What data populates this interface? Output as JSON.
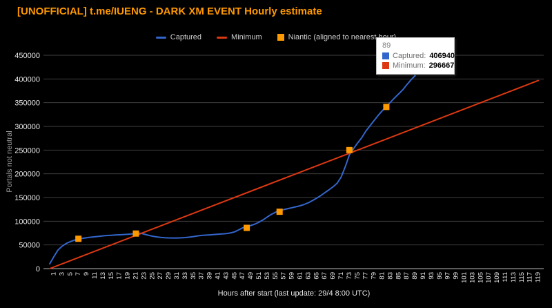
{
  "title": "[UNOFFICIAL] t.me/IUENG - DARK XM EVENT Hourly estimate",
  "colors": {
    "captured": "#3366cc",
    "minimum": "#dc3912",
    "niantic": "#ff9900",
    "grid": "#3f3f3f",
    "baseline": "#b9b9b9",
    "axis_text": "#e8e8e8",
    "axis_title": "#9e9e9e",
    "title": "#ff9900",
    "background": "#000000"
  },
  "legend": {
    "items": [
      {
        "label": "Captured",
        "color": "#3366cc",
        "glyph": "line"
      },
      {
        "label": "Minimum",
        "color": "#dc3912",
        "glyph": "line"
      },
      {
        "label": "Niantic (aligned to nearest hour)",
        "color": "#ff9900",
        "glyph": "square"
      }
    ]
  },
  "tooltip": {
    "x_label": "89",
    "rows": [
      {
        "label": "Captured:",
        "value": "406940",
        "color": "#3366cc"
      },
      {
        "label": "Minimum:",
        "value": "296667",
        "color": "#dc3912"
      }
    ]
  },
  "chart_data": {
    "type": "line",
    "title": "[UNOFFICIAL] t.me/IUENG - DARK XM EVENT Hourly estimate",
    "xlabel": "Hours after start (last update: 29/4  8:00 UTC)",
    "ylabel": "Portals not neutral",
    "xlim": [
      0,
      120
    ],
    "ylim": [
      0,
      450000
    ],
    "grid": true,
    "legend_position": "top",
    "x_ticks": [
      1,
      3,
      5,
      7,
      9,
      11,
      13,
      15,
      17,
      19,
      21,
      23,
      25,
      27,
      29,
      31,
      33,
      35,
      37,
      39,
      41,
      43,
      45,
      47,
      49,
      51,
      53,
      55,
      57,
      59,
      61,
      63,
      65,
      67,
      69,
      71,
      73,
      75,
      77,
      79,
      81,
      83,
      85,
      87,
      89,
      91,
      93,
      95,
      97,
      99,
      101,
      103,
      105,
      107,
      109,
      111,
      113,
      115,
      117,
      119
    ],
    "y_ticks": [
      0,
      50000,
      100000,
      150000,
      200000,
      250000,
      300000,
      350000,
      400000,
      450000
    ],
    "hovered_point": {
      "x": 89,
      "captured": 406940,
      "minimum": 296667
    },
    "series": [
      {
        "name": "Captured",
        "type": "line",
        "color": "#3366cc",
        "points": [
          [
            0,
            10000
          ],
          [
            1,
            25000
          ],
          [
            2,
            39000
          ],
          [
            3,
            47000
          ],
          [
            4,
            53000
          ],
          [
            5,
            57000
          ],
          [
            6,
            60000
          ],
          [
            7,
            62500
          ],
          [
            8,
            64000
          ],
          [
            9,
            65200
          ],
          [
            10,
            66200
          ],
          [
            11,
            67200
          ],
          [
            12,
            68200
          ],
          [
            13,
            69200
          ],
          [
            14,
            69900
          ],
          [
            15,
            70400
          ],
          [
            16,
            70900
          ],
          [
            17,
            71400
          ],
          [
            18,
            71900
          ],
          [
            19,
            72400
          ],
          [
            20,
            73200
          ],
          [
            21,
            74000
          ],
          [
            22,
            74800
          ],
          [
            23,
            72800
          ],
          [
            24,
            70500
          ],
          [
            25,
            68500
          ],
          [
            26,
            67000
          ],
          [
            27,
            66000
          ],
          [
            28,
            65200
          ],
          [
            29,
            64800
          ],
          [
            30,
            64600
          ],
          [
            31,
            64700
          ],
          [
            32,
            65000
          ],
          [
            33,
            65600
          ],
          [
            34,
            66400
          ],
          [
            35,
            67600
          ],
          [
            36,
            69000
          ],
          [
            37,
            70000
          ],
          [
            38,
            70600
          ],
          [
            39,
            71200
          ],
          [
            40,
            72000
          ],
          [
            41,
            72700
          ],
          [
            42,
            73300
          ],
          [
            43,
            74000
          ],
          [
            44,
            75200
          ],
          [
            45,
            77500
          ],
          [
            46,
            81500
          ],
          [
            47,
            86000
          ],
          [
            48,
            88500
          ],
          [
            49,
            91000
          ],
          [
            50,
            94000
          ],
          [
            51,
            98000
          ],
          [
            52,
            103000
          ],
          [
            53,
            109000
          ],
          [
            54,
            114500
          ],
          [
            55,
            119000
          ],
          [
            56,
            122000
          ],
          [
            57,
            124500
          ],
          [
            58,
            126500
          ],
          [
            59,
            128500
          ],
          [
            60,
            130500
          ],
          [
            61,
            132500
          ],
          [
            62,
            135500
          ],
          [
            63,
            139000
          ],
          [
            64,
            143500
          ],
          [
            65,
            148500
          ],
          [
            66,
            154000
          ],
          [
            67,
            160000
          ],
          [
            68,
            166000
          ],
          [
            69,
            172500
          ],
          [
            70,
            180000
          ],
          [
            71,
            193000
          ],
          [
            72,
            215000
          ],
          [
            73,
            240000
          ],
          [
            74,
            253000
          ],
          [
            75,
            265000
          ],
          [
            76,
            276000
          ],
          [
            77,
            290000
          ],
          [
            78,
            301000
          ],
          [
            79,
            312000
          ],
          [
            80,
            323000
          ],
          [
            81,
            333000
          ],
          [
            82,
            341500
          ],
          [
            83,
            351000
          ],
          [
            84,
            360000
          ],
          [
            85,
            368500
          ],
          [
            86,
            377000
          ],
          [
            87,
            388000
          ],
          [
            88,
            398000
          ],
          [
            89,
            406940
          ]
        ]
      },
      {
        "name": "Minimum",
        "type": "line",
        "color": "#dc3912",
        "points": [
          [
            0,
            0
          ],
          [
            119,
            396667
          ]
        ]
      },
      {
        "name": "Niantic (aligned to nearest hour)",
        "type": "points",
        "marker": "square",
        "color": "#ff9900",
        "points": [
          [
            7,
            63000
          ],
          [
            21,
            74000
          ],
          [
            48,
            86000
          ],
          [
            56,
            120000
          ],
          [
            73,
            250000
          ],
          [
            82,
            341000
          ]
        ]
      }
    ]
  }
}
